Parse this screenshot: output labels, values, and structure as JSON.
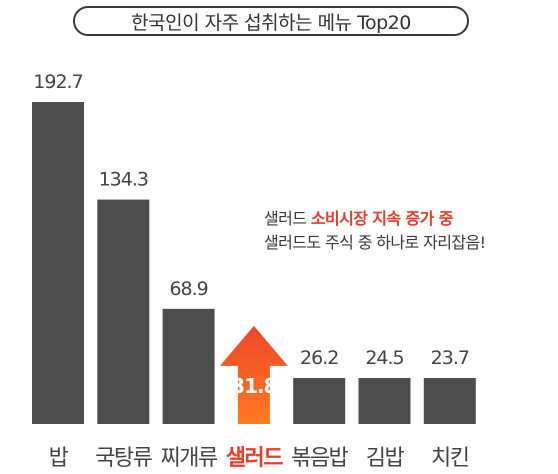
{
  "chart_data": {
    "type": "bar",
    "title": "한국인이 자주 섭취하는 메뉴 Top20",
    "categories": [
      "밥",
      "국탕류",
      "찌개류",
      "샐러드",
      "볶음밥",
      "김밥",
      "치킨"
    ],
    "values": [
      192.7,
      134.3,
      68.9,
      31.8,
      26.2,
      24.5,
      23.7
    ],
    "value_labels": [
      "192.7",
      "134.3",
      "68.9",
      "31.8",
      "26.2",
      "24.5",
      "23.7"
    ],
    "highlight_category": "샐러드",
    "annotation": {
      "line1_prefix": "샐러드 ",
      "line1_highlight": "소비시장 지속 증가 중",
      "line2": "샐러드도 주식 중 하나로 자리잡음!"
    },
    "colors": {
      "bar": "#4d4d4d",
      "highlight_top": "#f0462a",
      "highlight_bottom": "#ff7a22",
      "highlight_text": "#ef3b25",
      "text": "#444444"
    }
  }
}
